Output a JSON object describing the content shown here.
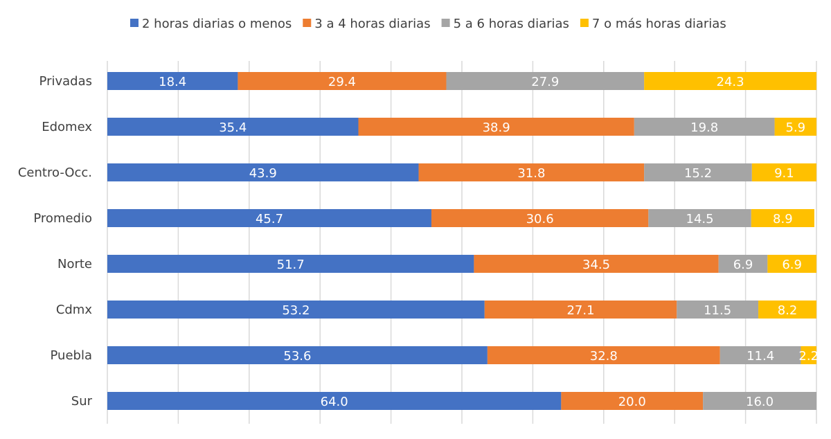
{
  "chart_data": {
    "type": "bar",
    "orientation": "horizontal",
    "stacked": true,
    "categories": [
      "Privadas",
      "Edomex",
      "Centro-Occ.",
      "Promedio",
      "Norte",
      "Cdmx",
      "Puebla",
      "Sur"
    ],
    "series": [
      {
        "name": "2 horas diarias o menos",
        "color": "#4472C4",
        "values": [
          18.4,
          35.4,
          43.9,
          45.7,
          51.7,
          53.2,
          53.6,
          64.0
        ]
      },
      {
        "name": "3 a 4 horas diarias",
        "color": "#ED7D31",
        "values": [
          29.4,
          38.9,
          31.8,
          30.6,
          34.5,
          27.1,
          32.8,
          20.0
        ]
      },
      {
        "name": "5 a 6 horas diarias",
        "color": "#A5A5A5",
        "values": [
          27.9,
          19.8,
          15.2,
          14.5,
          6.9,
          11.5,
          11.4,
          16.0
        ]
      },
      {
        "name": "7 o más horas diarias",
        "color": "#FFC000",
        "values": [
          24.3,
          5.9,
          9.1,
          8.9,
          6.9,
          8.2,
          2.2,
          null
        ]
      }
    ],
    "xlim": [
      0,
      100
    ],
    "grid": true,
    "legend": "top",
    "data_labels": true
  }
}
